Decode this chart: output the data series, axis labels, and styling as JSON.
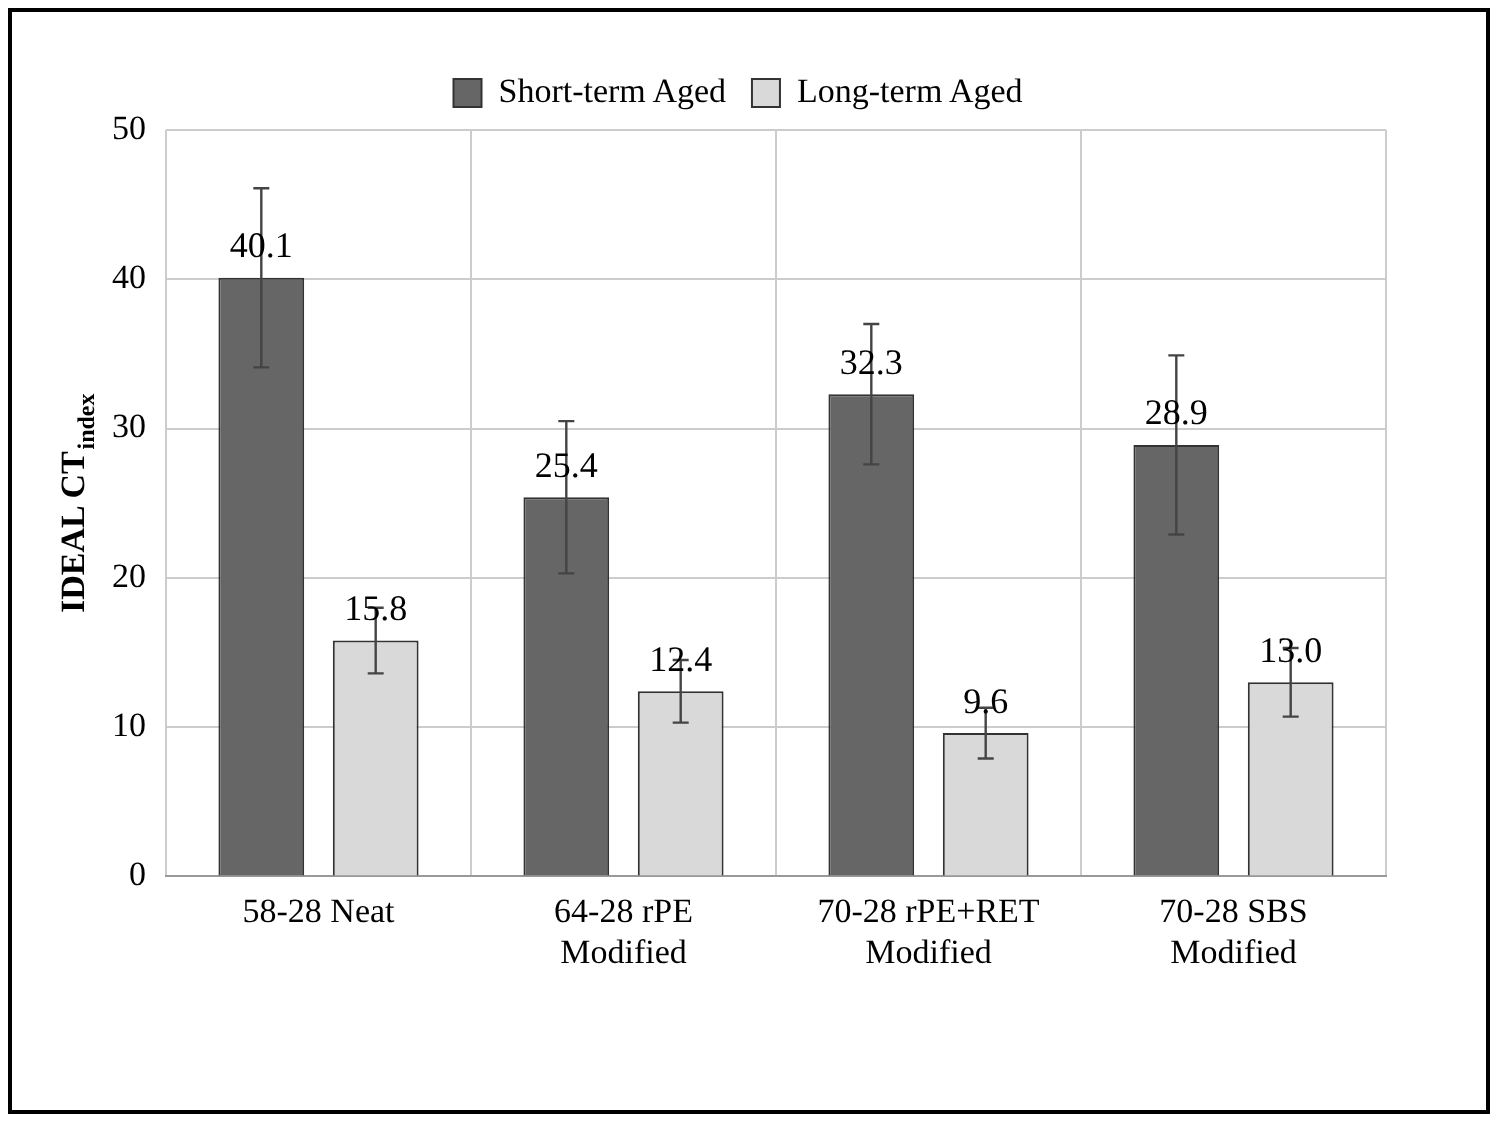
{
  "chart_data": {
    "type": "bar",
    "ylabel": "IDEAL CT$_{index}$",
    "categories": [
      "58-28 Neat",
      "64-28 rPE Modified",
      "70-28 rPE+RET Modified",
      "70-28 SBS Modified"
    ],
    "series": [
      {
        "name": "Short-term Aged",
        "color": "#666666",
        "values": [
          40.1,
          25.4,
          32.3,
          28.9
        ],
        "value_labels": [
          "40.1",
          "25.4",
          "32.3",
          "28.9"
        ],
        "errors": [
          6.0,
          5.1,
          4.7,
          6.0
        ]
      },
      {
        "name": "Long-term Aged",
        "color": "#d9d9d9",
        "values": [
          15.8,
          12.4,
          9.6,
          13.0
        ],
        "value_labels": [
          "15.8",
          "12.4",
          "9.6",
          "13.0"
        ],
        "errors": [
          2.2,
          2.1,
          1.7,
          2.3
        ]
      }
    ],
    "ylim": [
      0,
      50
    ],
    "yticks": [
      0,
      10,
      20,
      30,
      40,
      50
    ],
    "grid": true,
    "legend": "top"
  }
}
